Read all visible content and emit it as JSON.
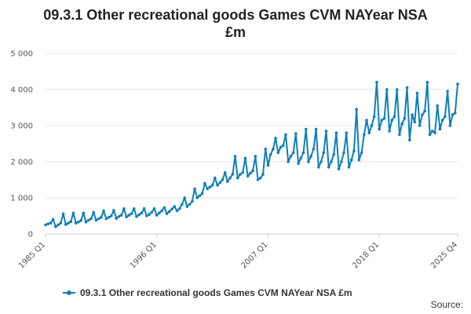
{
  "page": {
    "source_label": "Source:"
  },
  "chart_data": {
    "type": "line",
    "title": "09.3.1 Other recreational goods Games CVM NAYear NSA £m",
    "title_line1": "09.3.1 Other recreational goods Games CVM NAYear NSA",
    "title_line2": "£m",
    "xlabel": "",
    "ylabel": "",
    "ylim": [
      0,
      5000
    ],
    "yticks": [
      0,
      1000,
      2000,
      3000,
      4000,
      5000
    ],
    "ytick_labels": [
      "0",
      "1 000",
      "2 000",
      "3 000",
      "4 000",
      "5 000"
    ],
    "xtick_labels": [
      {
        "label": "1985 Q1",
        "index": 0
      },
      {
        "label": "1996 Q1",
        "index": 44
      },
      {
        "label": "2007 Q1",
        "index": 88
      },
      {
        "label": "2018 Q1",
        "index": 132
      },
      {
        "label": "2025 Q4",
        "index": 163
      }
    ],
    "grid": true,
    "legend_position": "bottom",
    "color": "#0f7fb8",
    "series": [
      {
        "name": "09.3.1 Other recreational goods Games CVM NAYear NSA £m",
        "start": "1985 Q1",
        "frequency": "quarterly",
        "values": [
          250,
          280,
          300,
          400,
          200,
          250,
          300,
          560,
          260,
          300,
          340,
          580,
          300,
          330,
          370,
          580,
          330,
          380,
          420,
          600,
          380,
          420,
          460,
          640,
          420,
          460,
          500,
          650,
          430,
          480,
          520,
          700,
          470,
          520,
          560,
          700,
          480,
          530,
          580,
          700,
          500,
          540,
          600,
          700,
          520,
          580,
          640,
          730,
          560,
          620,
          690,
          760,
          640,
          700,
          820,
          1000,
          760,
          820,
          900,
          1250,
          1000,
          1060,
          1120,
          1400,
          1250,
          1300,
          1350,
          1550,
          1350,
          1420,
          1500,
          1700,
          1450,
          1550,
          1650,
          2150,
          1550,
          1650,
          1700,
          2100,
          1600,
          1680,
          1750,
          2150,
          1500,
          1550,
          1650,
          2350,
          1900,
          2200,
          2350,
          2650,
          2250,
          2400,
          2450,
          2750,
          2000,
          2150,
          2250,
          2780,
          1950,
          2100,
          2250,
          2900,
          2000,
          2150,
          2350,
          2900,
          1850,
          2000,
          2250,
          2850,
          1850,
          2000,
          2200,
          2800,
          1800,
          2000,
          2250,
          2800,
          1850,
          2050,
          2300,
          3450,
          2050,
          2250,
          2750,
          3150,
          2800,
          3000,
          3250,
          4200,
          2900,
          3150,
          3200,
          4000,
          2850,
          3150,
          3250,
          4000,
          2750,
          3050,
          3200,
          4050,
          2600,
          3300,
          3100,
          3900,
          3000,
          3300,
          3400,
          4200,
          2750,
          2850,
          2800,
          3550,
          2900,
          3150,
          3250,
          3950,
          3000,
          3300,
          3350,
          4150
        ]
      }
    ]
  }
}
